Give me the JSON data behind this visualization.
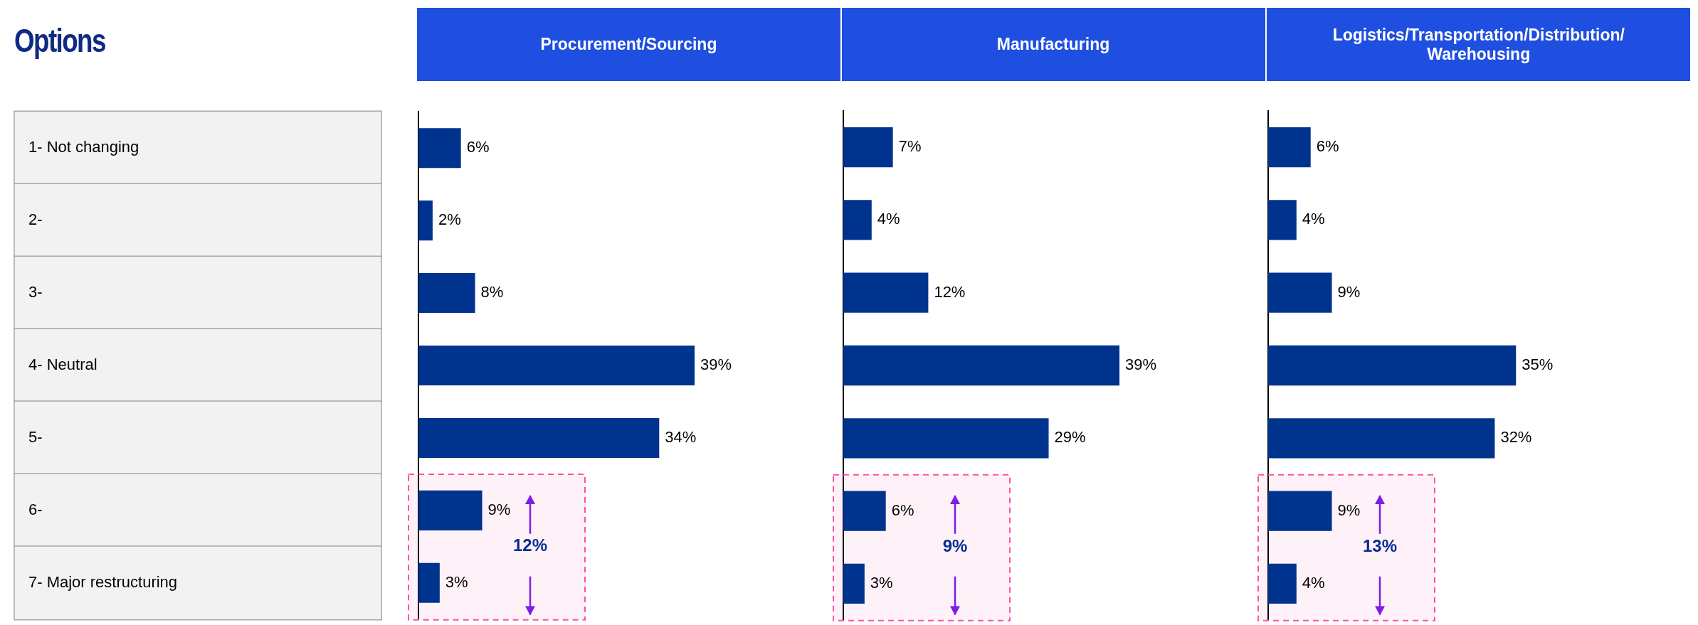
{
  "chart_data": [
    {
      "type": "bar",
      "orientation": "horizontal",
      "title": "Procurement/Sourcing",
      "ylabel": "Options",
      "categories": [
        "1- Not changing",
        "2-",
        "3-",
        "4- Neutral",
        "5-",
        "6-",
        "7- Major restructuring"
      ],
      "values": [
        6,
        2,
        8,
        39,
        34,
        9,
        3
      ],
      "value_labels": [
        "6%",
        "2%",
        "8%",
        "39%",
        "34%",
        "9%",
        "3%"
      ],
      "color": "#00338d",
      "tick_labels": "y",
      "annotations": [
        "12%"
      ],
      "bands": [
        {
          "axis": "y",
          "from": "6-",
          "to": "7- Major restructuring",
          "color": "#ff4fa3"
        }
      ]
    },
    {
      "type": "bar",
      "orientation": "horizontal",
      "title": "Manufacturing",
      "categories": [
        "1- Not changing",
        "2-",
        "3-",
        "4- Neutral",
        "5-",
        "6-",
        "7- Major restructuring"
      ],
      "values": [
        7,
        4,
        12,
        39,
        29,
        6,
        3
      ],
      "value_labels": [
        "7%",
        "4%",
        "12%",
        "39%",
        "29%",
        "6%",
        "3%"
      ],
      "color": "#00338d",
      "tick_labels": false,
      "annotations": [
        "9%"
      ],
      "bands": [
        {
          "axis": "y",
          "from": "6-",
          "to": "7- Major restructuring",
          "color": "#ff4fa3"
        }
      ]
    },
    {
      "type": "bar",
      "orientation": "horizontal",
      "title": "Logistics/Transportation/Distribution/ Warehousing",
      "categories": [
        "1- Not changing",
        "2-",
        "3-",
        "4- Neutral",
        "5-",
        "6-",
        "7- Major restructuring"
      ],
      "values": [
        6,
        4,
        9,
        35,
        32,
        9,
        4
      ],
      "value_labels": [
        "6%",
        "4%",
        "9%",
        "35%",
        "32%",
        "9%",
        "4%"
      ],
      "color": "#00338d",
      "tick_labels": false,
      "annotations": [
        "13%"
      ],
      "bands": [
        {
          "axis": "y",
          "from": "6-",
          "to": "7- Major restructuring",
          "color": "#ff4fa3"
        }
      ]
    }
  ]
}
